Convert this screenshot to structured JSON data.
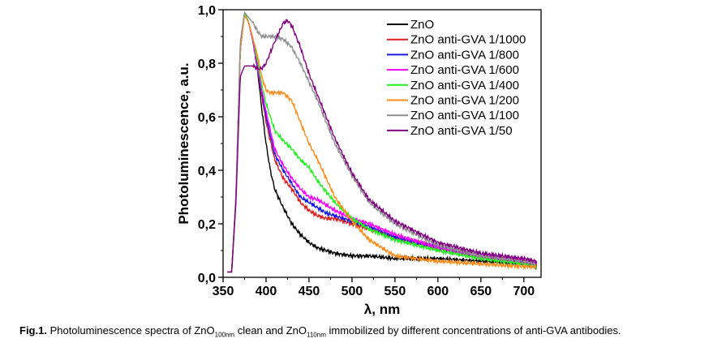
{
  "chart_data": {
    "type": "line",
    "xlabel": "λ, nm",
    "ylabel": "Photoluminescence, a.u.",
    "xlim": [
      350,
      720
    ],
    "ylim": [
      0.0,
      1.0
    ],
    "x_ticks": [
      "350",
      "400",
      "450",
      "500",
      "550",
      "600",
      "650",
      "700"
    ],
    "y_ticks": [
      "0,0",
      "0,2",
      "0,4",
      "0,6",
      "0,8",
      "1,0"
    ],
    "grid": false,
    "legend_position": "top-right",
    "series": [
      {
        "name": "ZnO",
        "color": "#000000",
        "x": [
          355,
          360,
          365,
          370,
          375,
          380,
          385,
          390,
          395,
          400,
          405,
          410,
          420,
          430,
          440,
          450,
          460,
          470,
          480,
          500,
          520,
          550,
          600,
          650,
          700,
          715
        ],
        "y": [
          0.02,
          0.02,
          0.3,
          0.85,
          0.99,
          0.95,
          0.88,
          0.78,
          0.63,
          0.5,
          0.4,
          0.33,
          0.26,
          0.2,
          0.16,
          0.13,
          0.11,
          0.1,
          0.09,
          0.08,
          0.08,
          0.07,
          0.07,
          0.06,
          0.05,
          0.04
        ]
      },
      {
        "name": "ZnO anti-GVA 1/1000",
        "color": "#e02020",
        "x": [
          355,
          360,
          365,
          370,
          375,
          380,
          385,
          390,
          395,
          400,
          410,
          420,
          430,
          440,
          450,
          460,
          470,
          480,
          500,
          520,
          550,
          600,
          650,
          700,
          715
        ],
        "y": [
          0.02,
          0.02,
          0.3,
          0.85,
          0.99,
          0.95,
          0.88,
          0.78,
          0.68,
          0.58,
          0.44,
          0.37,
          0.33,
          0.28,
          0.25,
          0.23,
          0.22,
          0.22,
          0.2,
          0.18,
          0.15,
          0.11,
          0.08,
          0.06,
          0.05
        ]
      },
      {
        "name": "ZnO anti-GVA 1/800",
        "color": "#1a1ae0",
        "x": [
          355,
          360,
          365,
          370,
          375,
          380,
          385,
          390,
          395,
          400,
          410,
          420,
          430,
          440,
          450,
          460,
          470,
          480,
          500,
          520,
          550,
          600,
          650,
          700,
          715
        ],
        "y": [
          0.02,
          0.02,
          0.3,
          0.85,
          0.99,
          0.95,
          0.88,
          0.78,
          0.69,
          0.6,
          0.46,
          0.4,
          0.35,
          0.3,
          0.28,
          0.26,
          0.24,
          0.23,
          0.21,
          0.19,
          0.15,
          0.11,
          0.08,
          0.06,
          0.05
        ]
      },
      {
        "name": "ZnO anti-GVA 1/600",
        "color": "#ff00ff",
        "x": [
          355,
          360,
          365,
          370,
          375,
          380,
          385,
          390,
          395,
          400,
          410,
          420,
          430,
          440,
          450,
          460,
          470,
          480,
          500,
          520,
          550,
          600,
          650,
          700,
          715
        ],
        "y": [
          0.02,
          0.02,
          0.3,
          0.85,
          0.99,
          0.95,
          0.88,
          0.79,
          0.7,
          0.62,
          0.48,
          0.42,
          0.37,
          0.33,
          0.3,
          0.29,
          0.27,
          0.25,
          0.22,
          0.2,
          0.16,
          0.11,
          0.08,
          0.06,
          0.05
        ]
      },
      {
        "name": "ZnO anti-GVA 1/400",
        "color": "#22ee22",
        "x": [
          355,
          360,
          365,
          370,
          375,
          380,
          385,
          390,
          395,
          400,
          410,
          420,
          430,
          440,
          450,
          460,
          470,
          480,
          500,
          520,
          550,
          600,
          650,
          700,
          715
        ],
        "y": [
          0.02,
          0.02,
          0.3,
          0.85,
          0.99,
          0.95,
          0.89,
          0.81,
          0.72,
          0.65,
          0.55,
          0.51,
          0.48,
          0.44,
          0.41,
          0.36,
          0.32,
          0.28,
          0.22,
          0.18,
          0.14,
          0.1,
          0.07,
          0.05,
          0.04
        ]
      },
      {
        "name": "ZnO anti-GVA 1/200",
        "color": "#ff8c1a",
        "x": [
          355,
          360,
          365,
          370,
          375,
          380,
          385,
          390,
          395,
          400,
          405,
          410,
          420,
          430,
          440,
          450,
          460,
          470,
          480,
          500,
          520,
          550,
          600,
          650,
          700,
          715
        ],
        "y": [
          0.02,
          0.02,
          0.3,
          0.85,
          0.98,
          0.95,
          0.89,
          0.83,
          0.75,
          0.7,
          0.69,
          0.69,
          0.69,
          0.66,
          0.58,
          0.5,
          0.44,
          0.37,
          0.3,
          0.21,
          0.14,
          0.08,
          0.06,
          0.05,
          0.04,
          0.04
        ]
      },
      {
        "name": "ZnO anti-GVA 1/100",
        "color": "#909090",
        "x": [
          355,
          360,
          365,
          370,
          375,
          380,
          385,
          390,
          395,
          400,
          410,
          420,
          430,
          440,
          450,
          460,
          470,
          480,
          500,
          520,
          550,
          600,
          650,
          700,
          715
        ],
        "y": [
          0.02,
          0.02,
          0.32,
          0.88,
          0.99,
          0.97,
          0.95,
          0.92,
          0.9,
          0.9,
          0.9,
          0.89,
          0.86,
          0.8,
          0.73,
          0.66,
          0.58,
          0.5,
          0.38,
          0.28,
          0.2,
          0.12,
          0.08,
          0.06,
          0.05
        ]
      },
      {
        "name": "ZnO anti-GVA 1/50",
        "color": "#800080",
        "x": [
          355,
          360,
          365,
          370,
          375,
          380,
          385,
          390,
          395,
          400,
          410,
          420,
          425,
          430,
          440,
          450,
          460,
          470,
          480,
          500,
          520,
          550,
          600,
          650,
          700,
          715
        ],
        "y": [
          0.02,
          0.02,
          0.28,
          0.75,
          0.79,
          0.79,
          0.79,
          0.78,
          0.78,
          0.8,
          0.88,
          0.95,
          0.96,
          0.94,
          0.86,
          0.76,
          0.68,
          0.6,
          0.52,
          0.39,
          0.29,
          0.21,
          0.13,
          0.09,
          0.07,
          0.06
        ]
      }
    ]
  },
  "caption": {
    "fig_label": "Fig.1.",
    "text_1": " Photoluminescence spectra of ZnO",
    "sub_1": "100nm",
    "text_2": " clean and ZnO",
    "sub_2": "110nm",
    "text_3": " immobilized by different concentrations of anti-GVA antibodies."
  }
}
